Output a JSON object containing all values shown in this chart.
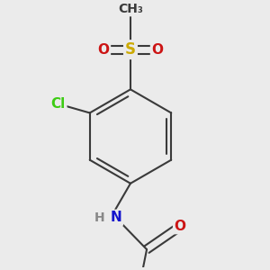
{
  "background_color": "#ebebeb",
  "bond_color": "#3a3a3a",
  "bond_width": 1.5,
  "atom_colors": {
    "C": "#3a3a3a",
    "H": "#3a3a3a",
    "N": "#1414cc",
    "O": "#cc1414",
    "S": "#ccaa00",
    "Cl": "#3dcc14"
  },
  "font_size": 11,
  "fig_size": [
    3.0,
    3.0
  ],
  "dpi": 100,
  "xlim": [
    -1.3,
    1.3
  ],
  "ylim": [
    -1.45,
    1.35
  ]
}
